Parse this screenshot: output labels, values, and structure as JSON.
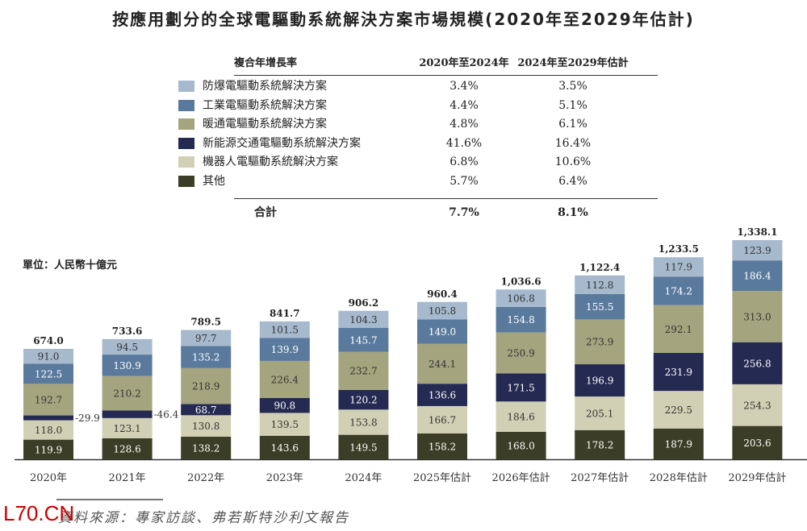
{
  "chart_data": {
    "type": "bar",
    "stacked": true,
    "title": "按應用劃分的全球電驅動系統解決方案市場規模(2020年至2029年估計)",
    "unit_label": "單位：人民幣十億元",
    "categories": [
      "2020年",
      "2021年",
      "2022年",
      "2023年",
      "2024年",
      "2025年估計",
      "2026年估計",
      "2027年估計",
      "2028年估計",
      "2029年估計"
    ],
    "totals": [
      "674.0",
      "733.6",
      "789.5",
      "841.7",
      "906.2",
      "960.4",
      "1,036.6",
      "1,122.4",
      "1,233.5",
      "1,338.1"
    ],
    "series": [
      {
        "name": "其他",
        "color": "#3c3d26",
        "text_color": "#fff",
        "values": [
          119.9,
          128.6,
          138.2,
          143.6,
          149.5,
          158.2,
          168.0,
          178.2,
          187.9,
          203.6
        ],
        "cagr_2020_2024": "5.7%",
        "cagr_2024_2029": "6.4%"
      },
      {
        "name": "機器人電驅動系統解決方案",
        "color": "#d1d0b4",
        "text_color": "#333",
        "values": [
          118.0,
          123.1,
          130.8,
          139.5,
          153.8,
          166.7,
          184.6,
          205.1,
          229.5,
          254.3
        ],
        "cagr_2020_2024": "6.8%",
        "cagr_2024_2029": "10.6%"
      },
      {
        "name": "新能源交通電驅動系統解決方案",
        "color": "#252a52",
        "text_color": "#fff",
        "values": [
          29.9,
          46.4,
          68.7,
          90.8,
          120.2,
          136.6,
          171.5,
          196.9,
          231.9,
          256.8
        ],
        "cagr_2020_2024": "41.6%",
        "cagr_2024_2029": "16.4%"
      },
      {
        "name": "暖通電驅動系統解決方案",
        "color": "#a4a57f",
        "text_color": "#333",
        "values": [
          192.7,
          210.2,
          218.9,
          226.4,
          232.7,
          244.1,
          250.9,
          273.9,
          292.1,
          313.0
        ],
        "cagr_2020_2024": "4.8%",
        "cagr_2024_2029": "6.1%"
      },
      {
        "name": "工業電驅動系統解決方案",
        "color": "#5a7a9d",
        "text_color": "#fff",
        "values": [
          122.5,
          130.9,
          135.2,
          139.9,
          145.7,
          149.0,
          154.8,
          155.5,
          174.2,
          186.4
        ],
        "cagr_2020_2024": "4.4%",
        "cagr_2024_2029": "5.1%"
      },
      {
        "name": "防爆電驅動系統解決方案",
        "color": "#a6b9cd",
        "text_color": "#333",
        "values": [
          91.0,
          94.5,
          97.7,
          101.5,
          104.3,
          105.8,
          106.8,
          112.8,
          117.9,
          123.9
        ],
        "cagr_2020_2024": "3.4%",
        "cagr_2024_2029": "3.5%"
      }
    ],
    "outside_labels": {
      "2": [
        "-29.9",
        "-46.4"
      ]
    }
  },
  "table": {
    "header": "複合年增長率",
    "col1": "2020年至2024年",
    "col2": "2024年至2029年估計",
    "total_label": "合計",
    "total_col1": "7.7%",
    "total_col2": "8.1%"
  },
  "source": "資料來源：專家訪談、弗若斯特沙利文報告",
  "watermark": "L70.CN"
}
